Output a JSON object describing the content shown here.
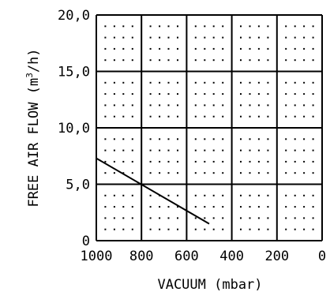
{
  "chart_data": {
    "type": "line",
    "title": "",
    "xlabel": "VACUUM (mbar)",
    "ylabel": {
      "prefix": "FREE AIR FLOW (m",
      "superscript": "3",
      "suffix": "/h)"
    },
    "x_reversed": true,
    "xlim": [
      1000,
      0
    ],
    "ylim": [
      0,
      20
    ],
    "x_ticks": [
      1000,
      800,
      600,
      400,
      200,
      0
    ],
    "x_tick_labels": [
      "1000",
      "800",
      "600",
      "400",
      "200",
      "0"
    ],
    "y_ticks": [
      0,
      5,
      10,
      15,
      20
    ],
    "y_tick_labels": [
      "0",
      "5,0",
      "10,0",
      "15,0",
      "20,0"
    ],
    "grid": "solid major grid with dotted minor grid",
    "series": [
      {
        "points": [
          {
            "x": 1000,
            "y": 7.3
          },
          {
            "x": 500,
            "y": 1.5
          }
        ]
      }
    ],
    "colors": {
      "line": "#000000",
      "grid": "#000000",
      "background": "#ffffff"
    }
  }
}
